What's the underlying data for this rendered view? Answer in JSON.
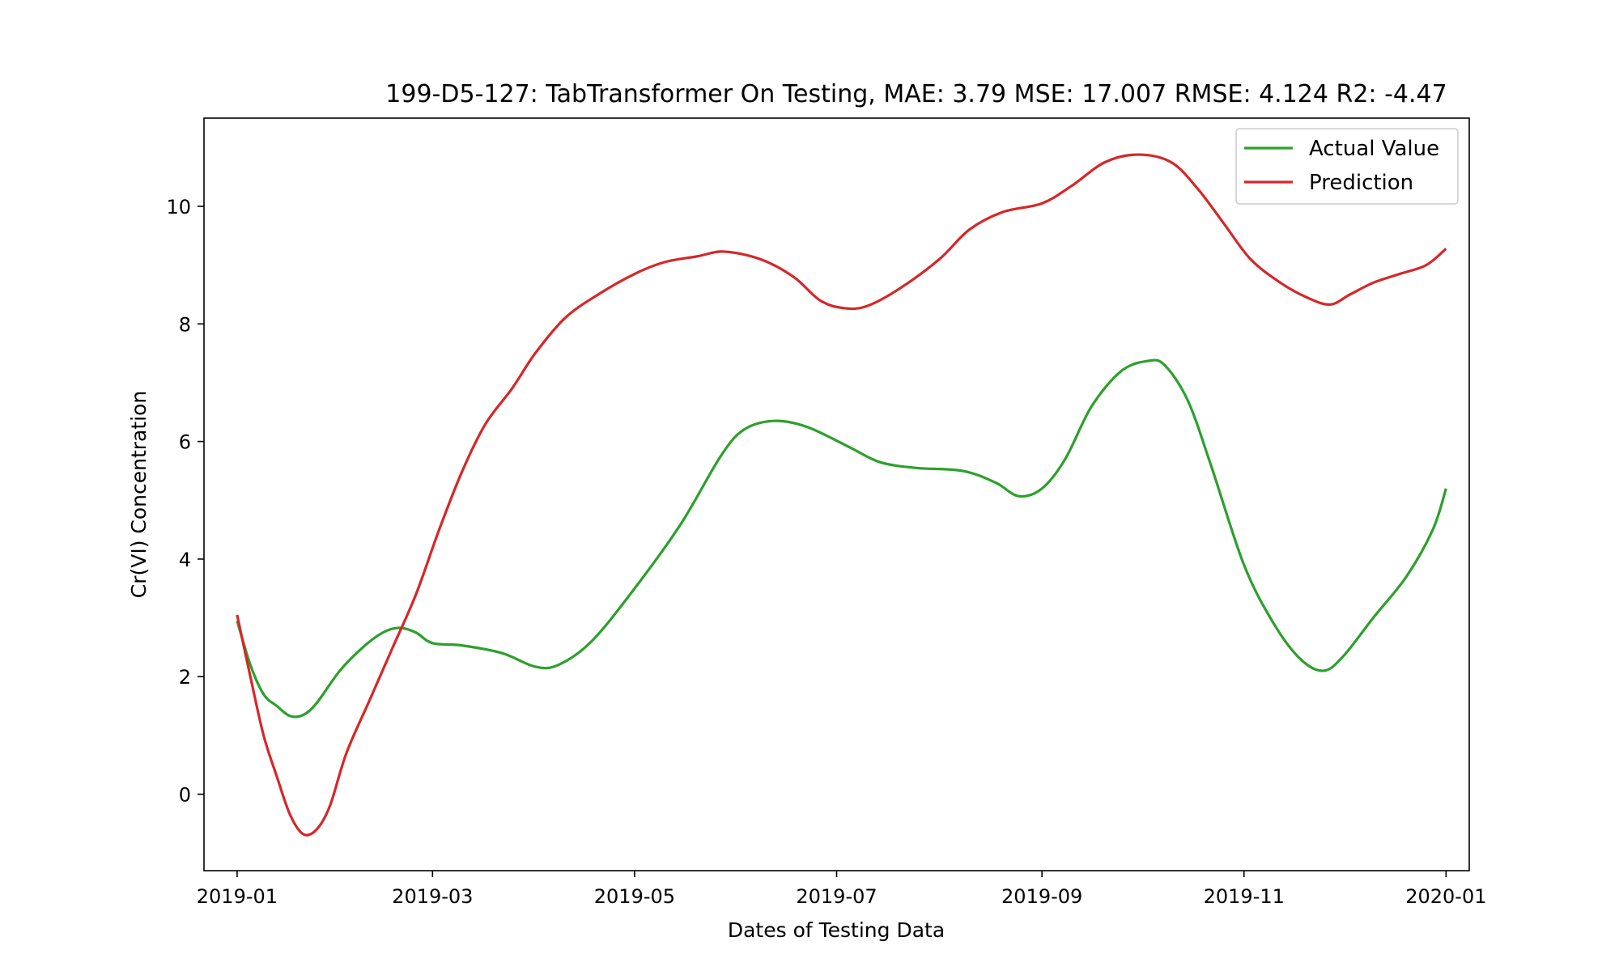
{
  "chart_data": {
    "type": "line",
    "title": "199-D5-127: TabTransformer On Testing, MAE: 3.79 MSE: 17.007 RMSE: 4.124 R2: -4.47",
    "xlabel": "Dates of Testing Data",
    "ylabel": "Cr(VI) Concentration",
    "xlim": [
      "2018-12-22",
      "2020-01-08"
    ],
    "ylim": [
      -1.3,
      11.5
    ],
    "x_ticks": [
      "2019-01",
      "2019-03",
      "2019-05",
      "2019-07",
      "2019-09",
      "2019-11",
      "2020-01"
    ],
    "y_ticks": [
      0,
      2,
      4,
      6,
      8,
      10
    ],
    "grid": false,
    "legend": "top-right",
    "series": [
      {
        "name": "Actual Value",
        "color": "#2ca02c",
        "points": [
          [
            "2019-01-01",
            2.95
          ],
          [
            "2019-01-05",
            2.2
          ],
          [
            "2019-01-09",
            1.7
          ],
          [
            "2019-01-13",
            1.5
          ],
          [
            "2019-01-17",
            1.33
          ],
          [
            "2019-01-21",
            1.35
          ],
          [
            "2019-01-25",
            1.55
          ],
          [
            "2019-02-01",
            2.1
          ],
          [
            "2019-02-08",
            2.5
          ],
          [
            "2019-02-14",
            2.75
          ],
          [
            "2019-02-19",
            2.83
          ],
          [
            "2019-02-24",
            2.75
          ],
          [
            "2019-03-01",
            2.57
          ],
          [
            "2019-03-10",
            2.53
          ],
          [
            "2019-03-22",
            2.4
          ],
          [
            "2019-04-01",
            2.17
          ],
          [
            "2019-04-08",
            2.2
          ],
          [
            "2019-04-18",
            2.6
          ],
          [
            "2019-05-01",
            3.5
          ],
          [
            "2019-05-15",
            4.6
          ],
          [
            "2019-05-27",
            5.75
          ],
          [
            "2019-06-03",
            6.2
          ],
          [
            "2019-06-12",
            6.35
          ],
          [
            "2019-06-22",
            6.25
          ],
          [
            "2019-07-05",
            5.9
          ],
          [
            "2019-07-14",
            5.65
          ],
          [
            "2019-07-25",
            5.55
          ],
          [
            "2019-08-08",
            5.5
          ],
          [
            "2019-08-18",
            5.3
          ],
          [
            "2019-08-25",
            5.07
          ],
          [
            "2019-09-01",
            5.2
          ],
          [
            "2019-09-08",
            5.7
          ],
          [
            "2019-09-16",
            6.6
          ],
          [
            "2019-09-25",
            7.2
          ],
          [
            "2019-10-03",
            7.37
          ],
          [
            "2019-10-08",
            7.3
          ],
          [
            "2019-10-15",
            6.7
          ],
          [
            "2019-10-22",
            5.6
          ],
          [
            "2019-11-01",
            3.9
          ],
          [
            "2019-11-10",
            2.9
          ],
          [
            "2019-11-18",
            2.3
          ],
          [
            "2019-11-25",
            2.1
          ],
          [
            "2019-12-01",
            2.35
          ],
          [
            "2019-12-10",
            3.0
          ],
          [
            "2019-12-20",
            3.7
          ],
          [
            "2019-12-28",
            4.5
          ],
          [
            "2020-01-01",
            5.2
          ]
        ]
      },
      {
        "name": "Prediction",
        "color": "#d62728",
        "points": [
          [
            "2019-01-01",
            3.05
          ],
          [
            "2019-01-05",
            2.0
          ],
          [
            "2019-01-09",
            1.0
          ],
          [
            "2019-01-13",
            0.3
          ],
          [
            "2019-01-17",
            -0.35
          ],
          [
            "2019-01-21",
            -0.68
          ],
          [
            "2019-01-25",
            -0.6
          ],
          [
            "2019-01-29",
            -0.2
          ],
          [
            "2019-02-03",
            0.7
          ],
          [
            "2019-02-10",
            1.6
          ],
          [
            "2019-02-17",
            2.5
          ],
          [
            "2019-02-24",
            3.4
          ],
          [
            "2019-03-03",
            4.5
          ],
          [
            "2019-03-10",
            5.5
          ],
          [
            "2019-03-17",
            6.3
          ],
          [
            "2019-03-25",
            6.9
          ],
          [
            "2019-04-01",
            7.5
          ],
          [
            "2019-04-10",
            8.1
          ],
          [
            "2019-04-20",
            8.5
          ],
          [
            "2019-05-01",
            8.85
          ],
          [
            "2019-05-10",
            9.05
          ],
          [
            "2019-05-20",
            9.15
          ],
          [
            "2019-05-28",
            9.23
          ],
          [
            "2019-06-08",
            9.1
          ],
          [
            "2019-06-18",
            8.8
          ],
          [
            "2019-06-26",
            8.4
          ],
          [
            "2019-07-03",
            8.27
          ],
          [
            "2019-07-10",
            8.3
          ],
          [
            "2019-07-20",
            8.6
          ],
          [
            "2019-08-01",
            9.1
          ],
          [
            "2019-08-10",
            9.6
          ],
          [
            "2019-08-20",
            9.9
          ],
          [
            "2019-09-01",
            10.05
          ],
          [
            "2019-09-10",
            10.35
          ],
          [
            "2019-09-20",
            10.75
          ],
          [
            "2019-09-30",
            10.88
          ],
          [
            "2019-10-10",
            10.75
          ],
          [
            "2019-10-18",
            10.3
          ],
          [
            "2019-10-26",
            9.7
          ],
          [
            "2019-11-03",
            9.1
          ],
          [
            "2019-11-12",
            8.7
          ],
          [
            "2019-11-20",
            8.45
          ],
          [
            "2019-11-27",
            8.33
          ],
          [
            "2019-12-03",
            8.5
          ],
          [
            "2019-12-10",
            8.7
          ],
          [
            "2019-12-18",
            8.85
          ],
          [
            "2019-12-26",
            9.0
          ],
          [
            "2020-01-01",
            9.28
          ]
        ]
      }
    ]
  }
}
